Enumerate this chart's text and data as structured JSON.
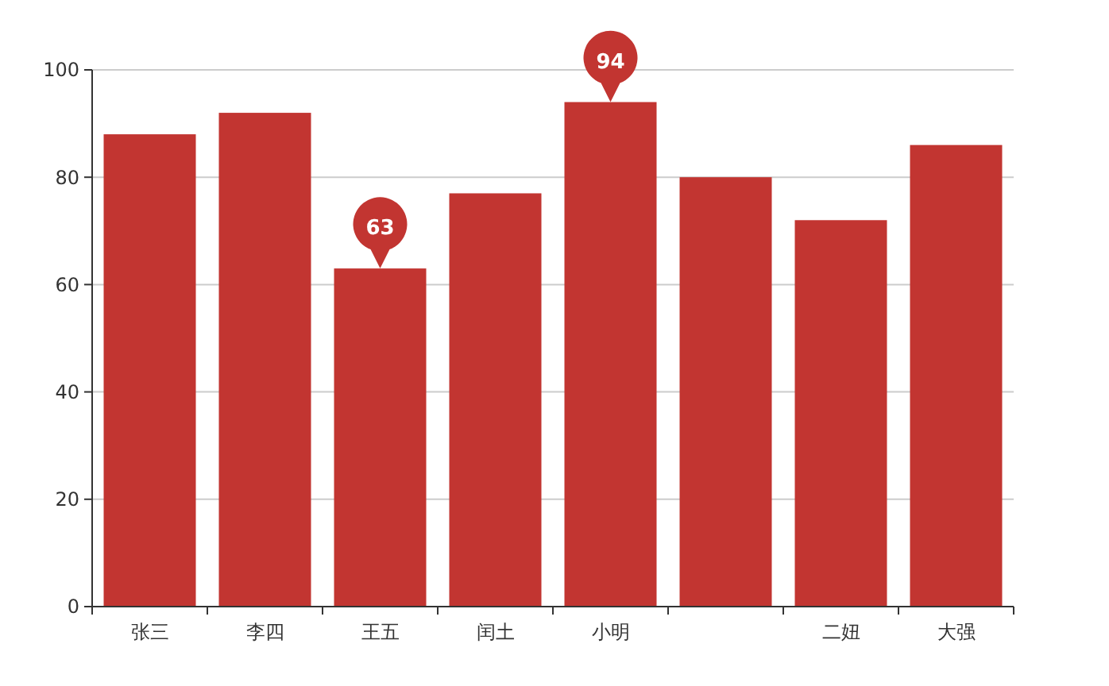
{
  "chart_data": {
    "type": "bar",
    "categories": [
      "张三",
      "李四",
      "王五",
      "闰土",
      "小明",
      null,
      "二妞",
      "大强"
    ],
    "values": [
      88,
      92,
      63,
      77,
      94,
      80,
      72,
      86
    ],
    "value_labels": [
      null,
      null,
      "63",
      null,
      "94",
      null,
      null,
      null
    ],
    "color": "#c23531",
    "ylim": [
      0,
      100
    ],
    "yticks": [
      0,
      20,
      40,
      60,
      80,
      100
    ],
    "grid": "y"
  }
}
